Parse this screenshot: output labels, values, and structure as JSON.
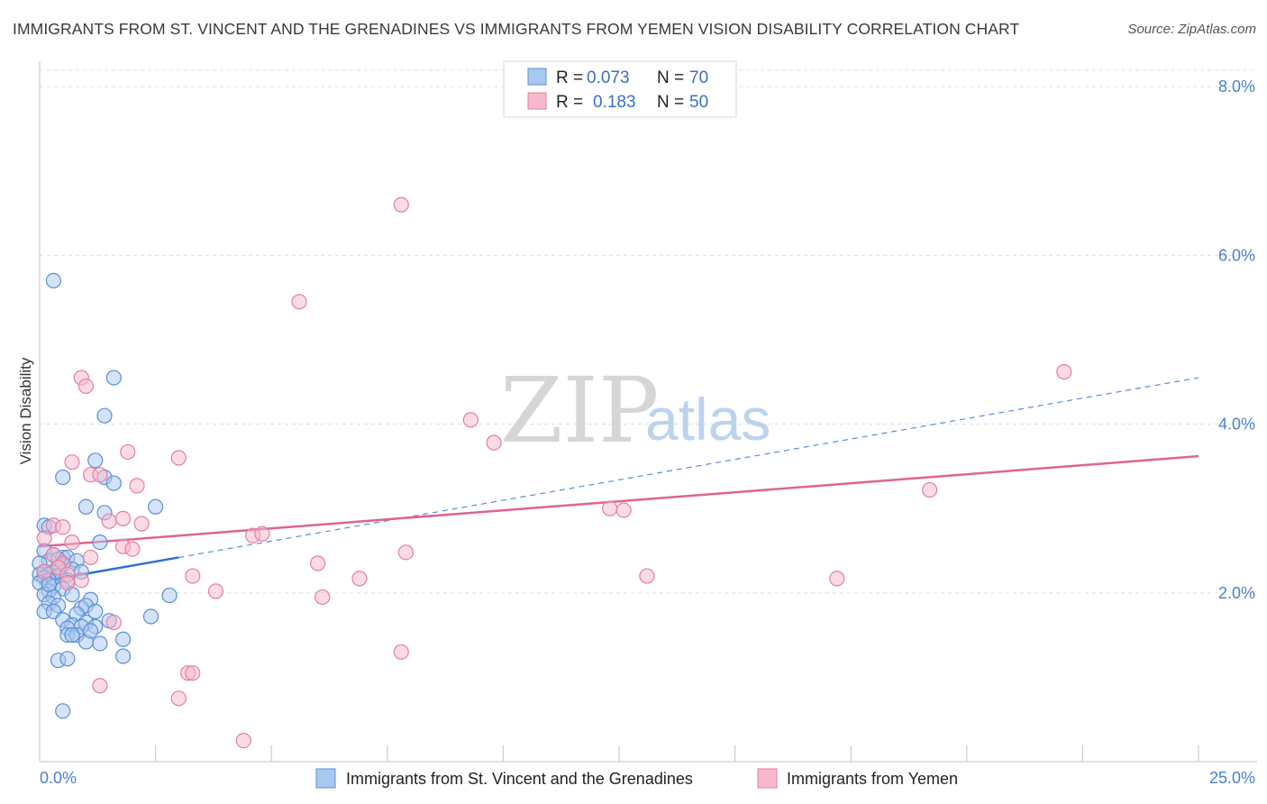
{
  "title": "IMMIGRANTS FROM ST. VINCENT AND THE GRENADINES VS IMMIGRANTS FROM YEMEN VISION DISABILITY CORRELATION CHART",
  "source": "Source: ZipAtlas.com",
  "watermark": {
    "zip": "ZIP",
    "atlas": "atlas"
  },
  "colors": {
    "blue_fill": "#a9c8f0",
    "blue_stroke": "#5b8fd6",
    "blue_line": "#2f6fd0",
    "pink_fill": "#f7b8cb",
    "pink_stroke": "#e57ea0",
    "pink_line": "#e0648f",
    "grid": "#dddddd",
    "tick_label": "#4a7fd1"
  },
  "legend": {
    "rows": [
      {
        "r_label": "R = ",
        "r_value": "0.073",
        "n_label": "N = ",
        "n_value": "70"
      },
      {
        "r_label": "R = ",
        "r_value": "0.183",
        "n_label": "N = ",
        "n_value": "50"
      }
    ]
  },
  "bottom_legend": [
    "Immigrants from St. Vincent and the Grenadines",
    "Immigrants from Yemen"
  ],
  "chart_data": {
    "type": "scatter",
    "title": "IMMIGRANTS FROM ST. VINCENT AND THE GRENADINES VS IMMIGRANTS FROM YEMEN VISION DISABILITY CORRELATION CHART",
    "xlabel": "",
    "ylabel": "Vision Disability",
    "xlim": [
      0,
      25
    ],
    "ylim": [
      0,
      8.3
    ],
    "x_tick_labels": [
      "0.0%",
      "25.0%"
    ],
    "y_ticks": [
      2,
      4,
      6,
      8
    ],
    "y_tick_labels": [
      "2.0%",
      "4.0%",
      "6.0%",
      "8.0%"
    ],
    "grid": true,
    "legend_position": "top-center",
    "series": [
      {
        "name": "Immigrants from St. Vincent and the Grenadines",
        "color": "blue",
        "r": 0.073,
        "n": 70,
        "trend": {
          "x": [
            0,
            3.0
          ],
          "y": [
            2.13,
            2.42
          ],
          "dashed_to": [
            25,
            4.55
          ]
        },
        "points": [
          [
            0.3,
            5.7
          ],
          [
            1.6,
            4.55
          ],
          [
            1.4,
            4.1
          ],
          [
            1.2,
            3.57
          ],
          [
            0.5,
            3.37
          ],
          [
            1.4,
            3.37
          ],
          [
            1.6,
            3.3
          ],
          [
            1.0,
            3.02
          ],
          [
            1.4,
            2.95
          ],
          [
            2.5,
            3.02
          ],
          [
            0.1,
            2.8
          ],
          [
            0.2,
            2.78
          ],
          [
            1.3,
            2.6
          ],
          [
            0.1,
            2.5
          ],
          [
            0.3,
            2.45
          ],
          [
            0.5,
            2.42
          ],
          [
            0.6,
            2.42
          ],
          [
            0.2,
            2.38
          ],
          [
            0.8,
            2.38
          ],
          [
            0.0,
            2.35
          ],
          [
            0.5,
            2.33
          ],
          [
            0.4,
            2.3
          ],
          [
            0.7,
            2.28
          ],
          [
            0.1,
            2.25
          ],
          [
            0.3,
            2.25
          ],
          [
            0.0,
            2.22
          ],
          [
            0.2,
            2.22
          ],
          [
            0.4,
            2.2
          ],
          [
            0.1,
            2.18
          ],
          [
            0.2,
            2.15
          ],
          [
            0.6,
            2.15
          ],
          [
            0.0,
            2.12
          ],
          [
            0.3,
            2.08
          ],
          [
            0.5,
            2.05
          ],
          [
            0.2,
            2.02
          ],
          [
            0.1,
            1.98
          ],
          [
            0.3,
            1.95
          ],
          [
            0.7,
            1.98
          ],
          [
            1.1,
            1.92
          ],
          [
            2.8,
            1.97
          ],
          [
            0.2,
            1.88
          ],
          [
            0.4,
            1.85
          ],
          [
            0.9,
            1.82
          ],
          [
            1.0,
            1.85
          ],
          [
            0.1,
            1.78
          ],
          [
            0.3,
            1.78
          ],
          [
            0.8,
            1.75
          ],
          [
            1.2,
            1.78
          ],
          [
            2.4,
            1.72
          ],
          [
            0.5,
            1.68
          ],
          [
            0.7,
            1.62
          ],
          [
            1.0,
            1.65
          ],
          [
            1.5,
            1.67
          ],
          [
            0.6,
            1.58
          ],
          [
            0.9,
            1.6
          ],
          [
            1.2,
            1.6
          ],
          [
            0.6,
            1.5
          ],
          [
            0.8,
            1.5
          ],
          [
            1.0,
            1.42
          ],
          [
            1.3,
            1.4
          ],
          [
            1.8,
            1.45
          ],
          [
            1.8,
            1.25
          ],
          [
            0.4,
            1.2
          ],
          [
            0.6,
            1.22
          ],
          [
            0.5,
            0.6
          ],
          [
            0.7,
            1.5
          ],
          [
            1.1,
            1.55
          ],
          [
            0.4,
            2.4
          ],
          [
            0.2,
            2.1
          ],
          [
            0.9,
            2.25
          ]
        ]
      },
      {
        "name": "Immigrants from Yemen",
        "color": "pink",
        "r": 0.183,
        "n": 50,
        "trend": {
          "x": [
            0,
            25
          ],
          "y": [
            2.55,
            3.62
          ]
        },
        "points": [
          [
            7.8,
            6.6
          ],
          [
            5.6,
            5.45
          ],
          [
            22.1,
            4.62
          ],
          [
            0.9,
            4.55
          ],
          [
            1.0,
            4.45
          ],
          [
            9.3,
            4.05
          ],
          [
            9.8,
            3.78
          ],
          [
            1.9,
            3.67
          ],
          [
            3.0,
            3.6
          ],
          [
            0.7,
            3.55
          ],
          [
            1.1,
            3.4
          ],
          [
            1.3,
            3.4
          ],
          [
            2.1,
            3.27
          ],
          [
            19.2,
            3.22
          ],
          [
            12.3,
            3.0
          ],
          [
            12.6,
            2.98
          ],
          [
            1.5,
            2.85
          ],
          [
            2.2,
            2.82
          ],
          [
            1.8,
            2.88
          ],
          [
            0.3,
            2.8
          ],
          [
            0.5,
            2.78
          ],
          [
            0.1,
            2.65
          ],
          [
            4.6,
            2.68
          ],
          [
            4.8,
            2.7
          ],
          [
            0.7,
            2.6
          ],
          [
            1.8,
            2.55
          ],
          [
            2.0,
            2.52
          ],
          [
            7.9,
            2.48
          ],
          [
            0.3,
            2.45
          ],
          [
            1.1,
            2.42
          ],
          [
            0.5,
            2.35
          ],
          [
            6.0,
            2.35
          ],
          [
            0.4,
            2.3
          ],
          [
            0.1,
            2.25
          ],
          [
            0.6,
            2.22
          ],
          [
            3.3,
            2.2
          ],
          [
            13.1,
            2.2
          ],
          [
            17.2,
            2.17
          ],
          [
            6.9,
            2.17
          ],
          [
            0.9,
            2.15
          ],
          [
            0.6,
            2.12
          ],
          [
            3.8,
            2.02
          ],
          [
            6.1,
            1.95
          ],
          [
            1.6,
            1.65
          ],
          [
            7.8,
            1.3
          ],
          [
            3.2,
            1.05
          ],
          [
            3.3,
            1.05
          ],
          [
            1.3,
            0.9
          ],
          [
            3.0,
            0.75
          ],
          [
            4.4,
            0.25
          ]
        ]
      }
    ]
  }
}
